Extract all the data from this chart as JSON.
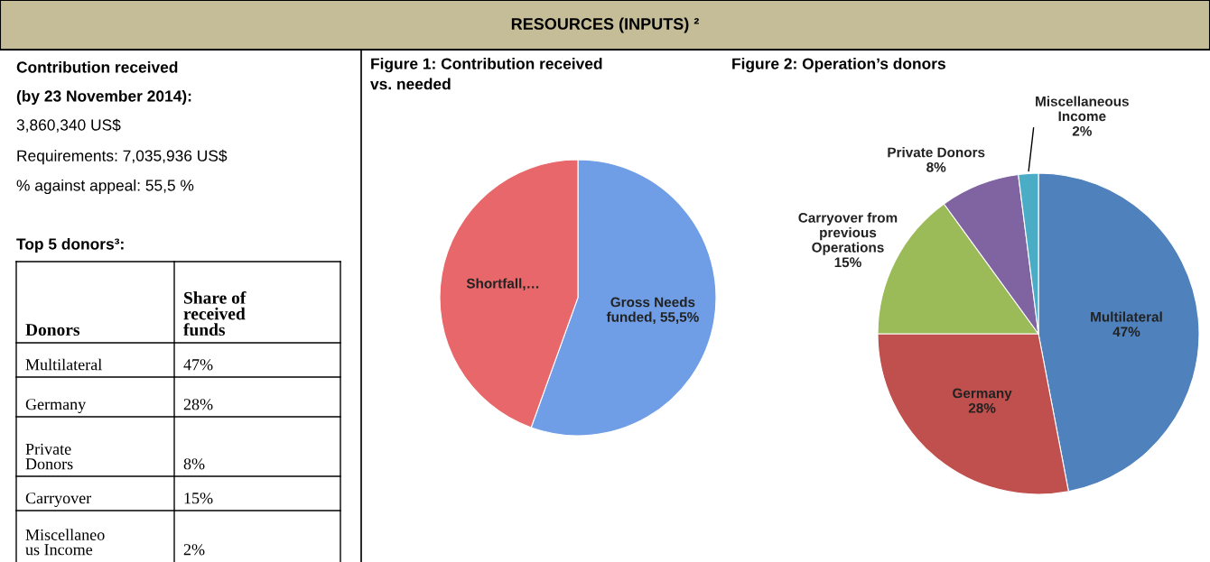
{
  "chart_data": [
    {
      "type": "other",
      "title": "RESOURCES (INPUTS) ²",
      "annotations": [
        "Contribution received",
        "(by 23 November 2014):",
        "3,860,340 US$",
        "Requirements: 7,035,936 US$",
        "% against appeal: 55,5 %",
        "Top 5 donors³:",
        "Donors",
        "Share of\nreceived\nfunds",
        "Multilateral",
        "47%",
        "Germany",
        "28%",
        "Private\nDonors",
        "8%",
        "Carryover",
        "15%",
        "Miscellaneo\nus Income",
        "2%"
      ]
    },
    {
      "type": "pie",
      "title": "Figure 1: Contribution received\nvs. needed",
      "categories": [
        "Gross Needs funded",
        "Shortfall"
      ],
      "values": [
        55.5,
        44.5
      ],
      "colors": [
        "#6f9ee6",
        "#e8676a"
      ],
      "value_labels": [
        ", 55,5%",
        ",…"
      ]
    },
    {
      "type": "pie",
      "title": "Figure 2: Operation’s donors",
      "categories": [
        "Multilateral",
        "Germany",
        "Carryover from previous Operations",
        "Private Donors",
        "Miscellaneous Income"
      ],
      "values": [
        47,
        28,
        15,
        8,
        2
      ],
      "colors": [
        "#4f81bd",
        "#c0504d",
        "#9bbb59",
        "#8064a2",
        "#4bacc6"
      ],
      "value_labels": [
        "47%",
        "28%",
        "15%",
        "8%",
        "2%"
      ]
    }
  ]
}
